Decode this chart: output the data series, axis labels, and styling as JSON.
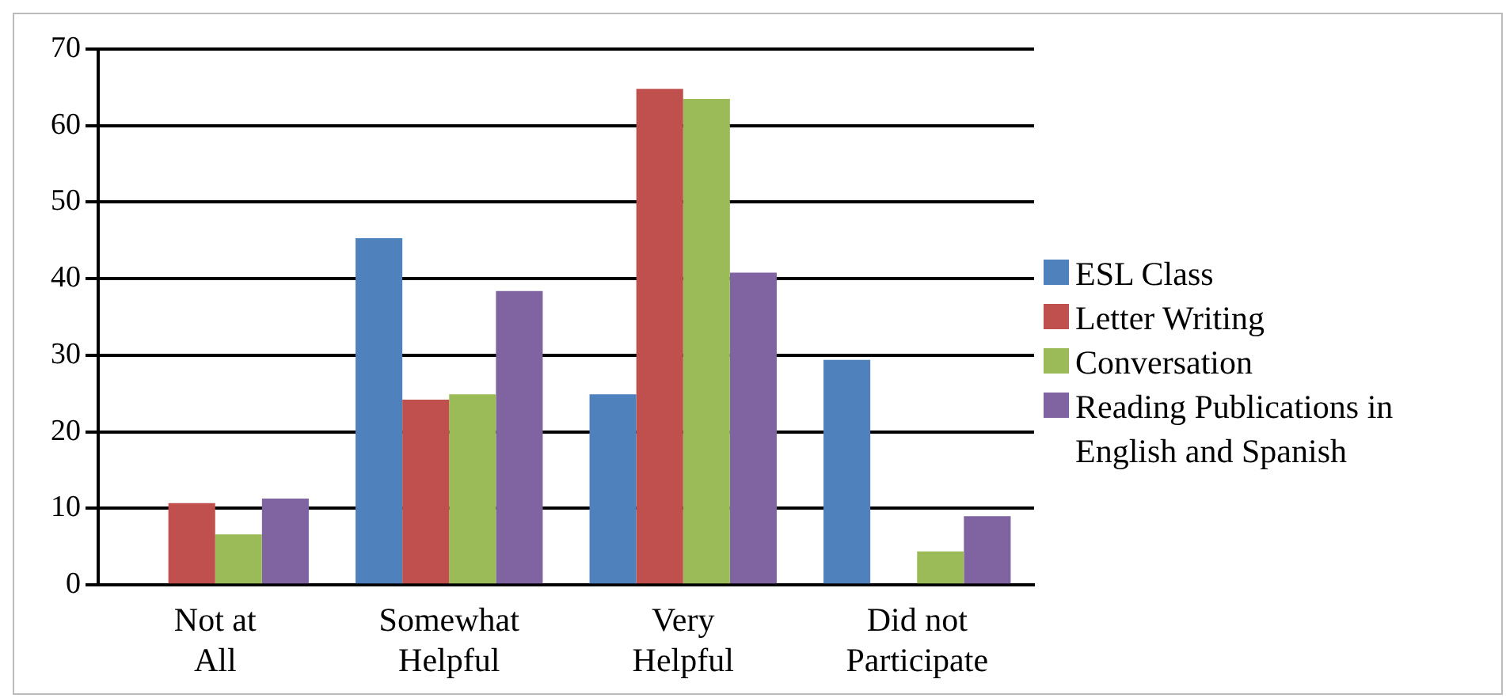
{
  "chart_data": {
    "type": "bar",
    "categories": [
      "Not at All",
      "Somewhat Helpful",
      "Very Helpful",
      "Did not Participate"
    ],
    "series": [
      {
        "name": "ESL Class",
        "color": "#4f81bd",
        "values": [
          0,
          45.3,
          24.9,
          29.4
        ]
      },
      {
        "name": "Letter Writing",
        "color": "#c0504d",
        "values": [
          10.7,
          24.2,
          64.8,
          0
        ]
      },
      {
        "name": "Conversation",
        "color": "#9bbb59",
        "values": [
          6.6,
          24.9,
          63.5,
          4.4
        ]
      },
      {
        "name": "Reading Publications in English and Spanish",
        "color": "#8064a2",
        "values": [
          11.3,
          38.4,
          40.8,
          9.0
        ]
      }
    ],
    "ylim": [
      0,
      70
    ],
    "yticks": [
      0,
      10,
      20,
      30,
      40,
      50,
      60,
      70
    ],
    "grid": "y",
    "legend": "right"
  }
}
